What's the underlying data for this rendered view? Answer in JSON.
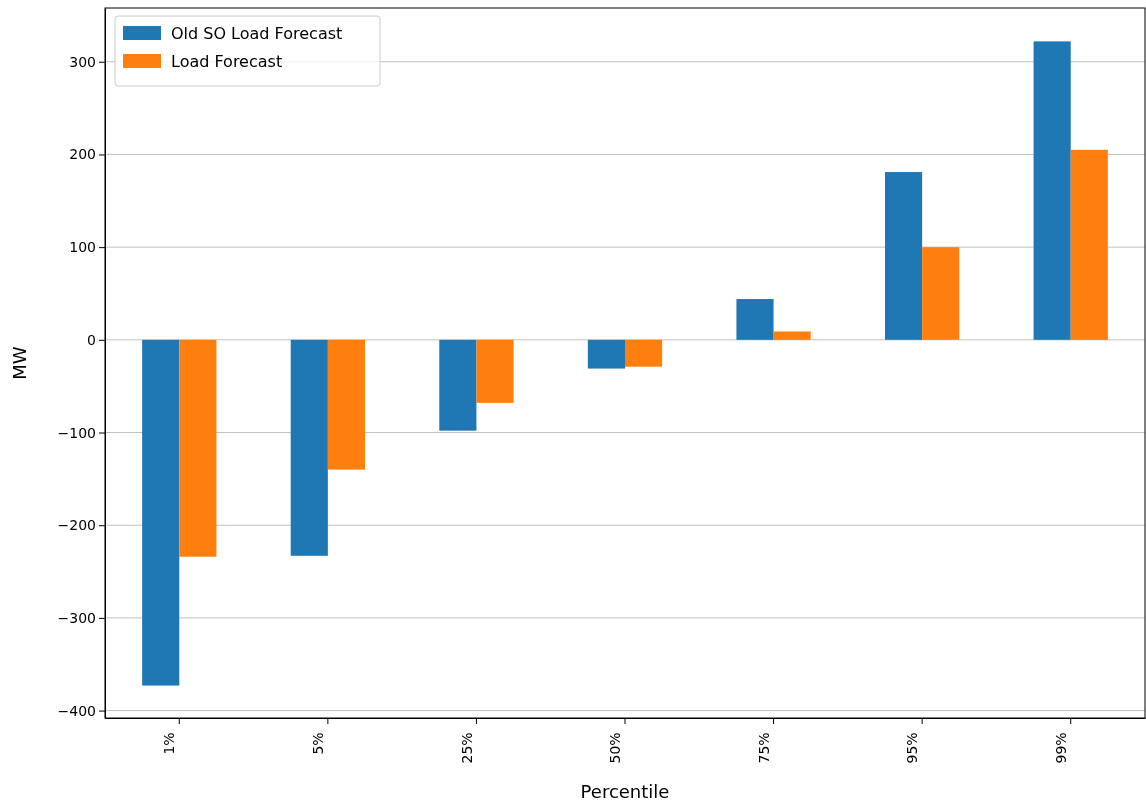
{
  "chart_data": {
    "type": "bar",
    "xlabel": "Percentile",
    "ylabel": "MW",
    "categories": [
      "1%",
      "5%",
      "25%",
      "50%",
      "75%",
      "95%",
      "99%"
    ],
    "series": [
      {
        "name": "Old SO Load Forecast",
        "color": "#1f77b4",
        "values": [
          -373,
          -233,
          -98,
          -31,
          44,
          181,
          322
        ]
      },
      {
        "name": "Load Forecast",
        "color": "#ff7f0e",
        "values": [
          -234,
          -140,
          -68,
          -29,
          9,
          100,
          205
        ]
      }
    ],
    "ylim": [
      -408,
      358
    ],
    "yticks": [
      -400,
      -300,
      -200,
      -100,
      0,
      100,
      200,
      300
    ],
    "grid": "y",
    "legend": "top left"
  }
}
